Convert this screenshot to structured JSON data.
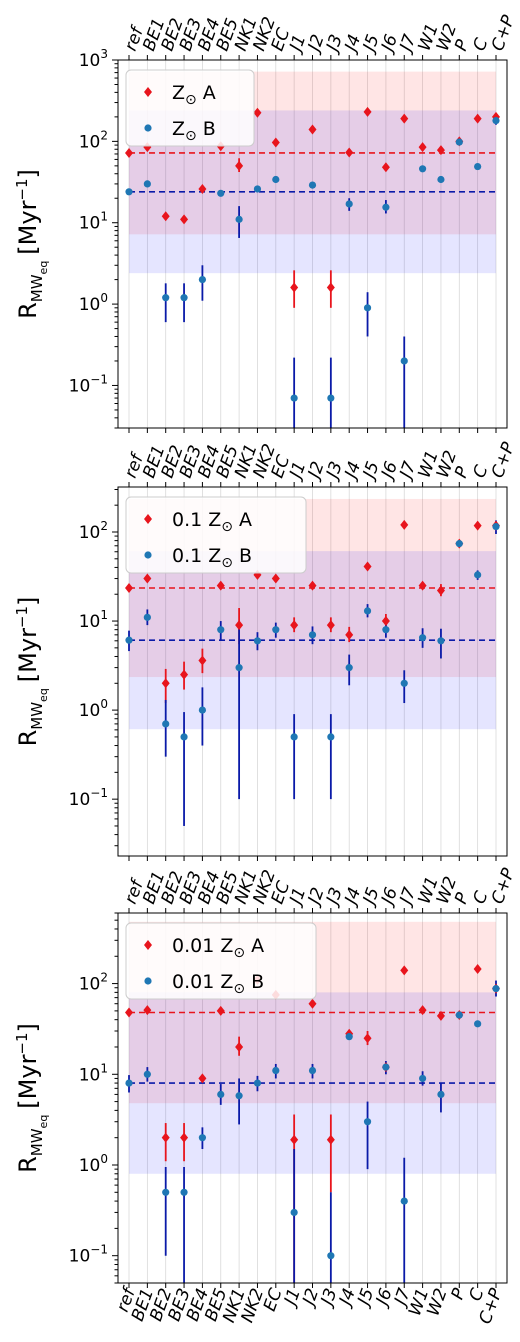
{
  "chart_data": [
    {
      "type": "scatter",
      "panel": "top",
      "categories": [
        "ref",
        "BE1",
        "BE2",
        "BE3",
        "BE4",
        "BE5",
        "NK1",
        "NK2",
        "EC",
        "J1",
        "J2",
        "J3",
        "J4",
        "J5",
        "J6",
        "J7",
        "W1",
        "W2",
        "P",
        "C",
        "C+P"
      ],
      "ylabel_main": "R",
      "ylabel_sub": "MW",
      "ylabel_subsub": "eq",
      "ylabel_unit": "[Myr",
      "ylabel_unit_exp": "−1",
      "ylabel_close": "]",
      "yscale": "log",
      "ylim": [
        0.03,
        1000
      ],
      "yticks": [
        0.1,
        1,
        10,
        100,
        1000
      ],
      "ytick_labels": [
        {
          "base": "10",
          "exp": "−1"
        },
        {
          "base": "10",
          "exp": "0"
        },
        {
          "base": "10",
          "exp": "1"
        },
        {
          "base": "10",
          "exp": "2"
        },
        {
          "base": "10",
          "exp": "3"
        }
      ],
      "legend": {
        "position": "upper-left"
      },
      "series": [
        {
          "name": "Z",
          "name_symbol": "⊙",
          "name_suffix": "A",
          "name_prefix": "",
          "color": "#e8151d",
          "marker": "diamond",
          "reference_line": 72,
          "band": [
            7.2,
            720
          ],
          "points": [
            {
              "cat": "ref",
              "y": 72
            },
            {
              "cat": "BE1",
              "y": 85
            },
            {
              "cat": "BE2",
              "y": 12
            },
            {
              "cat": "BE3",
              "y": 11
            },
            {
              "cat": "BE4",
              "y": 26
            },
            {
              "cat": "BE5",
              "y": 87
            },
            {
              "cat": "NK1",
              "y": 50,
              "lo": 42,
              "hi": 62
            },
            {
              "cat": "NK2",
              "y": 225
            },
            {
              "cat": "EC",
              "y": 97
            },
            {
              "cat": "J1",
              "y": 1.6,
              "lo": 0.9,
              "hi": 2.6
            },
            {
              "cat": "J2",
              "y": 140
            },
            {
              "cat": "J3",
              "y": 1.6,
              "lo": 0.9,
              "hi": 2.6
            },
            {
              "cat": "J4",
              "y": 73
            },
            {
              "cat": "J5",
              "y": 230
            },
            {
              "cat": "J6",
              "y": 48
            },
            {
              "cat": "J7",
              "y": 190
            },
            {
              "cat": "W1",
              "y": 85
            },
            {
              "cat": "W2",
              "y": 78
            },
            {
              "cat": "P",
              "y": 100
            },
            {
              "cat": "C",
              "y": 190
            },
            {
              "cat": "C+P",
              "y": 200
            }
          ]
        },
        {
          "name": "Z",
          "name_symbol": "⊙",
          "name_suffix": "B",
          "name_prefix": "",
          "color": "#1f77b4",
          "errcolor": "#0a1aa8",
          "marker": "circle",
          "reference_line": 24,
          "band": [
            2.4,
            240
          ],
          "points": [
            {
              "cat": "ref",
              "y": 24
            },
            {
              "cat": "BE1",
              "y": 30
            },
            {
              "cat": "BE2",
              "y": 1.2,
              "lo": 0.6,
              "hi": 1.8
            },
            {
              "cat": "BE3",
              "y": 1.2,
              "lo": 0.6,
              "hi": 1.8
            },
            {
              "cat": "BE4",
              "y": 2.0,
              "lo": 1.1,
              "hi": 3.0
            },
            {
              "cat": "BE5",
              "y": 23
            },
            {
              "cat": "NK1",
              "y": 11,
              "lo": 6.5,
              "hi": 16
            },
            {
              "cat": "NK2",
              "y": 26
            },
            {
              "cat": "EC",
              "y": 34
            },
            {
              "cat": "J1",
              "y": 0.07,
              "lo": 0.03,
              "hi": 0.22
            },
            {
              "cat": "J2",
              "y": 29
            },
            {
              "cat": "J3",
              "y": 0.07,
              "lo": 0.03,
              "hi": 0.22
            },
            {
              "cat": "J4",
              "y": 17,
              "lo": 14,
              "hi": 20
            },
            {
              "cat": "J5",
              "y": 0.9,
              "lo": 0.4,
              "hi": 1.4
            },
            {
              "cat": "J6",
              "y": 15.5,
              "lo": 13,
              "hi": 19
            },
            {
              "cat": "J7",
              "y": 0.2,
              "lo": 0.03,
              "hi": 0.4
            },
            {
              "cat": "W1",
              "y": 46
            },
            {
              "cat": "W2",
              "y": 34
            },
            {
              "cat": "P",
              "y": 98
            },
            {
              "cat": "C",
              "y": 49
            },
            {
              "cat": "C+P",
              "y": 180,
              "lo": 160,
              "hi": 200
            }
          ]
        }
      ]
    },
    {
      "type": "scatter",
      "panel": "middle",
      "categories": [
        "ref",
        "BE1",
        "BE2",
        "BE3",
        "BE4",
        "BE5",
        "NK1",
        "NK2",
        "EC",
        "J1",
        "J2",
        "J3",
        "J4",
        "J5",
        "J6",
        "J7",
        "W1",
        "W2",
        "P",
        "C",
        "C+P"
      ],
      "ylabel_main": "R",
      "ylabel_sub": "MW",
      "ylabel_subsub": "eq",
      "ylabel_unit": "[Myr",
      "ylabel_unit_exp": "−1",
      "ylabel_close": "]",
      "yscale": "log",
      "ylim": [
        0.023,
        320
      ],
      "yticks": [
        0.1,
        1,
        10,
        100
      ],
      "ytick_labels": [
        {
          "base": "10",
          "exp": "−1"
        },
        {
          "base": "10",
          "exp": "0"
        },
        {
          "base": "10",
          "exp": "1"
        },
        {
          "base": "10",
          "exp": "2"
        }
      ],
      "legend": {
        "position": "upper-left"
      },
      "series": [
        {
          "name": "Z",
          "name_symbol": "⊙",
          "name_suffix": "A",
          "name_prefix": "0.1",
          "color": "#e8151d",
          "marker": "diamond",
          "reference_line": 23.5,
          "band": [
            2.35,
            235
          ],
          "points": [
            {
              "cat": "ref",
              "y": 23.5
            },
            {
              "cat": "BE1",
              "y": 30
            },
            {
              "cat": "BE2",
              "y": 2.0,
              "lo": 1.2,
              "hi": 2.9
            },
            {
              "cat": "BE3",
              "y": 2.5,
              "lo": 1.7,
              "hi": 3.5
            },
            {
              "cat": "BE4",
              "y": 3.6,
              "lo": 2.6,
              "hi": 4.9
            },
            {
              "cat": "BE5",
              "y": 25
            },
            {
              "cat": "NK1",
              "y": 9,
              "lo": 5.5,
              "hi": 14
            },
            {
              "cat": "NK2",
              "y": 33
            },
            {
              "cat": "EC",
              "y": 30
            },
            {
              "cat": "J1",
              "y": 9,
              "lo": 7.5,
              "hi": 11
            },
            {
              "cat": "J2",
              "y": 25
            },
            {
              "cat": "J3",
              "y": 9,
              "lo": 7.5,
              "hi": 11
            },
            {
              "cat": "J4",
              "y": 7,
              "lo": 5.8,
              "hi": 8.6
            },
            {
              "cat": "J5",
              "y": 41
            },
            {
              "cat": "J6",
              "y": 10,
              "lo": 8.5,
              "hi": 12
            },
            {
              "cat": "J7",
              "y": 120
            },
            {
              "cat": "W1",
              "y": 25
            },
            {
              "cat": "W2",
              "y": 22,
              "lo": 19,
              "hi": 26
            },
            {
              "cat": "P",
              "y": 74
            },
            {
              "cat": "C",
              "y": 118
            },
            {
              "cat": "C+P",
              "y": 118
            }
          ]
        },
        {
          "name": "Z",
          "name_symbol": "⊙",
          "name_suffix": "B",
          "name_prefix": "0.1",
          "color": "#1f77b4",
          "errcolor": "#0a1aa8",
          "marker": "circle",
          "reference_line": 6.1,
          "band": [
            0.61,
            61
          ],
          "points": [
            {
              "cat": "ref",
              "y": 6.1,
              "lo": 4.6,
              "hi": 7.8
            },
            {
              "cat": "BE1",
              "y": 11,
              "lo": 9,
              "hi": 13.5
            },
            {
              "cat": "BE2",
              "y": 0.7,
              "lo": 0.3,
              "hi": 1.3
            },
            {
              "cat": "BE3",
              "y": 0.5,
              "lo": 0.05,
              "hi": 0.95
            },
            {
              "cat": "BE4",
              "y": 1.0,
              "lo": 0.4,
              "hi": 1.8
            },
            {
              "cat": "BE5",
              "y": 8,
              "lo": 6,
              "hi": 10
            },
            {
              "cat": "NK1",
              "y": 3,
              "lo": 0.1,
              "hi": 9
            },
            {
              "cat": "NK2",
              "y": 6,
              "lo": 4.7,
              "hi": 7.5
            },
            {
              "cat": "EC",
              "y": 8,
              "lo": 6.5,
              "hi": 9.6
            },
            {
              "cat": "J1",
              "y": 0.5,
              "lo": 0.1,
              "hi": 0.9
            },
            {
              "cat": "J2",
              "y": 7,
              "lo": 5.5,
              "hi": 8.7
            },
            {
              "cat": "J3",
              "y": 0.5,
              "lo": 0.1,
              "hi": 0.9
            },
            {
              "cat": "J4",
              "y": 3,
              "lo": 1.9,
              "hi": 4.2
            },
            {
              "cat": "J5",
              "y": 13,
              "lo": 11,
              "hi": 15.5
            },
            {
              "cat": "J6",
              "y": 8,
              "lo": 6.5,
              "hi": 9.6
            },
            {
              "cat": "J7",
              "y": 2,
              "lo": 1.2,
              "hi": 2.8
            },
            {
              "cat": "W1",
              "y": 6.5,
              "lo": 5,
              "hi": 8.3
            },
            {
              "cat": "W2",
              "y": 6,
              "lo": 3.8,
              "hi": 8.2
            },
            {
              "cat": "P",
              "y": 74
            },
            {
              "cat": "C",
              "y": 33,
              "lo": 29,
              "hi": 37
            },
            {
              "cat": "C+P",
              "y": 115,
              "lo": 95,
              "hi": 135
            }
          ]
        }
      ]
    },
    {
      "type": "scatter",
      "panel": "bottom",
      "categories": [
        "ref",
        "BE1",
        "BE2",
        "BE3",
        "BE4",
        "BE5",
        "NK1",
        "NK2",
        "EC",
        "J1",
        "J2",
        "J3",
        "J4",
        "J5",
        "J6",
        "J7",
        "W1",
        "W2",
        "P",
        "C",
        "C+P"
      ],
      "ylabel_main": "R",
      "ylabel_sub": "MW",
      "ylabel_subsub": "eq",
      "ylabel_unit": "[Myr",
      "ylabel_unit_exp": "−1",
      "ylabel_close": "]",
      "yscale": "log",
      "ylim": [
        0.05,
        600
      ],
      "yticks": [
        0.1,
        1,
        10,
        100
      ],
      "ytick_labels": [
        {
          "base": "10",
          "exp": "−1"
        },
        {
          "base": "10",
          "exp": "0"
        },
        {
          "base": "10",
          "exp": "1"
        },
        {
          "base": "10",
          "exp": "2"
        }
      ],
      "legend": {
        "position": "upper-left"
      },
      "series": [
        {
          "name": "Z",
          "name_symbol": "⊙",
          "name_suffix": "A",
          "name_prefix": "0.01",
          "color": "#e8151d",
          "marker": "diamond",
          "reference_line": 48,
          "band": [
            4.8,
            480
          ],
          "points": [
            {
              "cat": "ref",
              "y": 48
            },
            {
              "cat": "BE1",
              "y": 51
            },
            {
              "cat": "BE2",
              "y": 2,
              "lo": 1.1,
              "hi": 2.9
            },
            {
              "cat": "BE3",
              "y": 2,
              "lo": 1.1,
              "hi": 2.9
            },
            {
              "cat": "BE4",
              "y": 9
            },
            {
              "cat": "BE5",
              "y": 50
            },
            {
              "cat": "NK1",
              "y": 20,
              "lo": 16,
              "hi": 26
            },
            {
              "cat": "NK2",
              "y": 110
            },
            {
              "cat": "EC",
              "y": 75
            },
            {
              "cat": "J1",
              "y": 1.9,
              "lo": 0.05,
              "hi": 3.6
            },
            {
              "cat": "J2",
              "y": 60
            },
            {
              "cat": "J3",
              "y": 1.9,
              "lo": 0.5,
              "hi": 3.6
            },
            {
              "cat": "J4",
              "y": 28
            },
            {
              "cat": "J5",
              "y": 25,
              "lo": 21,
              "hi": 30
            },
            {
              "cat": "J6",
              "y": 12
            },
            {
              "cat": "J7",
              "y": 140
            },
            {
              "cat": "W1",
              "y": 51
            },
            {
              "cat": "W2",
              "y": 44
            },
            {
              "cat": "P",
              "y": 45
            },
            {
              "cat": "C",
              "y": 145
            },
            {
              "cat": "C+P",
              "y": 88
            }
          ]
        },
        {
          "name": "Z",
          "name_symbol": "⊙",
          "name_suffix": "B",
          "name_prefix": "0.01",
          "color": "#1f77b4",
          "errcolor": "#0a1aa8",
          "marker": "circle",
          "reference_line": 8,
          "band": [
            0.8,
            80
          ],
          "points": [
            {
              "cat": "ref",
              "y": 8,
              "lo": 6.3,
              "hi": 9.8
            },
            {
              "cat": "BE1",
              "y": 10,
              "lo": 8.3,
              "hi": 12
            },
            {
              "cat": "BE2",
              "y": 0.5,
              "lo": 0.1,
              "hi": 0.95
            },
            {
              "cat": "BE3",
              "y": 0.5,
              "lo": 0.05,
              "hi": 0.95
            },
            {
              "cat": "BE4",
              "y": 2,
              "lo": 1.5,
              "hi": 2.6
            },
            {
              "cat": "BE5",
              "y": 6,
              "lo": 4.6,
              "hi": 7.8
            },
            {
              "cat": "NK1",
              "y": 5.8,
              "lo": 2.8,
              "hi": 9
            },
            {
              "cat": "NK2",
              "y": 8,
              "lo": 6.5,
              "hi": 9.6
            },
            {
              "cat": "EC",
              "y": 11,
              "lo": 9,
              "hi": 13
            },
            {
              "cat": "J1",
              "y": 0.3,
              "lo": 0.05,
              "hi": 1.5
            },
            {
              "cat": "J2",
              "y": 11,
              "lo": 9,
              "hi": 13
            },
            {
              "cat": "J3",
              "y": 0.1,
              "lo": 0.05,
              "hi": 0.5
            },
            {
              "cat": "J4",
              "y": 26
            },
            {
              "cat": "J5",
              "y": 3,
              "lo": 0.9,
              "hi": 5
            },
            {
              "cat": "J6",
              "y": 12,
              "lo": 10,
              "hi": 14
            },
            {
              "cat": "J7",
              "y": 0.4,
              "lo": 0.05,
              "hi": 1.2
            },
            {
              "cat": "W1",
              "y": 9,
              "lo": 7.5,
              "hi": 10.8
            },
            {
              "cat": "W2",
              "y": 6,
              "lo": 3.8,
              "hi": 8
            },
            {
              "cat": "P",
              "y": 45
            },
            {
              "cat": "C",
              "y": 36
            },
            {
              "cat": "C+P",
              "y": 88,
              "lo": 72,
              "hi": 108
            }
          ]
        }
      ]
    }
  ]
}
